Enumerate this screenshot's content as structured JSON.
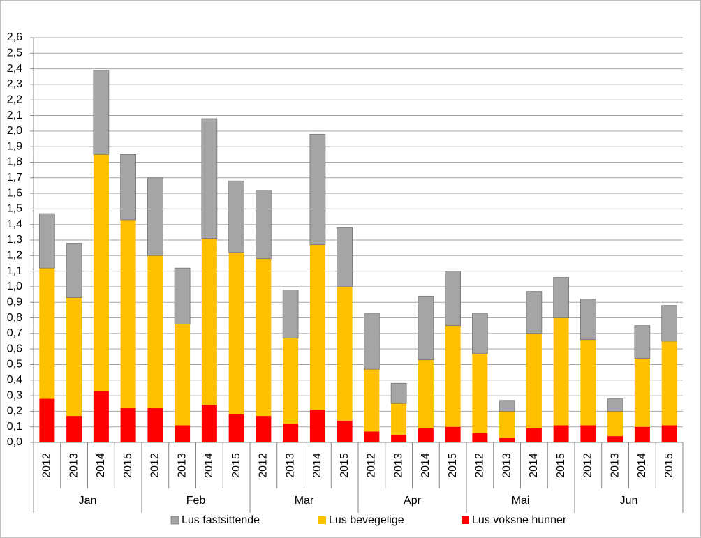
{
  "chart_data": {
    "type": "stacked-bar",
    "categories": [
      "2012",
      "2013",
      "2014",
      "2015",
      "2012",
      "2013",
      "2014",
      "2015",
      "2012",
      "2013",
      "2014",
      "2015",
      "2012",
      "2013",
      "2014",
      "2015",
      "2012",
      "2013",
      "2014",
      "2015",
      "2012",
      "2013",
      "2014",
      "2015"
    ],
    "category_groups": [
      "Jan",
      "Feb",
      "Mar",
      "Apr",
      "Mai",
      "Jun"
    ],
    "series": [
      {
        "name": "Lus fastsittende",
        "color": "#a5a5a5",
        "values": [
          0.35,
          0.35,
          0.54,
          0.42,
          0.5,
          0.36,
          0.77,
          0.46,
          0.44,
          0.31,
          0.71,
          0.38,
          0.36,
          0.13,
          0.41,
          0.35,
          0.26,
          0.07,
          0.27,
          0.26,
          0.26,
          0.08,
          0.21,
          0.23
        ]
      },
      {
        "name": "Lus bevegelige",
        "color": "#ffc000",
        "values": [
          0.84,
          0.76,
          1.52,
          1.21,
          0.98,
          0.65,
          1.07,
          1.04,
          1.01,
          0.55,
          1.06,
          0.86,
          0.4,
          0.2,
          0.44,
          0.65,
          0.51,
          0.17,
          0.61,
          0.69,
          0.55,
          0.16,
          0.44,
          0.54
        ]
      },
      {
        "name": "Lus voksne hunner",
        "color": "#ff0000",
        "values": [
          0.28,
          0.17,
          0.33,
          0.22,
          0.22,
          0.11,
          0.24,
          0.18,
          0.17,
          0.12,
          0.21,
          0.14,
          0.07,
          0.05,
          0.09,
          0.1,
          0.06,
          0.03,
          0.09,
          0.11,
          0.11,
          0.04,
          0.1,
          0.11
        ]
      }
    ],
    "ylim": [
      0,
      2.6
    ],
    "yticks": [
      {
        "value": 0,
        "label": "0,0"
      },
      {
        "value": 0.1,
        "label": "0,1"
      },
      {
        "value": 0.2,
        "label": "0,2"
      },
      {
        "value": 0.3,
        "label": "0,3"
      },
      {
        "value": 0.4,
        "label": "0,4"
      },
      {
        "value": 0.5,
        "label": "0,5"
      },
      {
        "value": 0.6,
        "label": "0,6"
      },
      {
        "value": 0.7,
        "label": "0,7"
      },
      {
        "value": 0.8,
        "label": "0,8"
      },
      {
        "value": 0.9,
        "label": "0,9"
      },
      {
        "value": 1.0,
        "label": "1,0"
      },
      {
        "value": 1.1,
        "label": "1,1"
      },
      {
        "value": 1.2,
        "label": "1,2"
      },
      {
        "value": 1.3,
        "label": "1,3"
      },
      {
        "value": 1.4,
        "label": "1,4"
      },
      {
        "value": 1.5,
        "label": "1,5"
      },
      {
        "value": 1.6,
        "label": "1,6"
      },
      {
        "value": 1.7,
        "label": "1,7"
      },
      {
        "value": 1.8,
        "label": "1,8"
      },
      {
        "value": 1.9,
        "label": "1,9"
      },
      {
        "value": 2.0,
        "label": "2,0"
      },
      {
        "value": 2.1,
        "label": "2,1"
      },
      {
        "value": 2.2,
        "label": "2,2"
      },
      {
        "value": 2.3,
        "label": "2,3"
      },
      {
        "value": 2.4,
        "label": "2,4"
      },
      {
        "value": 2.5,
        "label": "2,5"
      },
      {
        "value": 2.6,
        "label": "2,6"
      }
    ],
    "grid": true
  }
}
